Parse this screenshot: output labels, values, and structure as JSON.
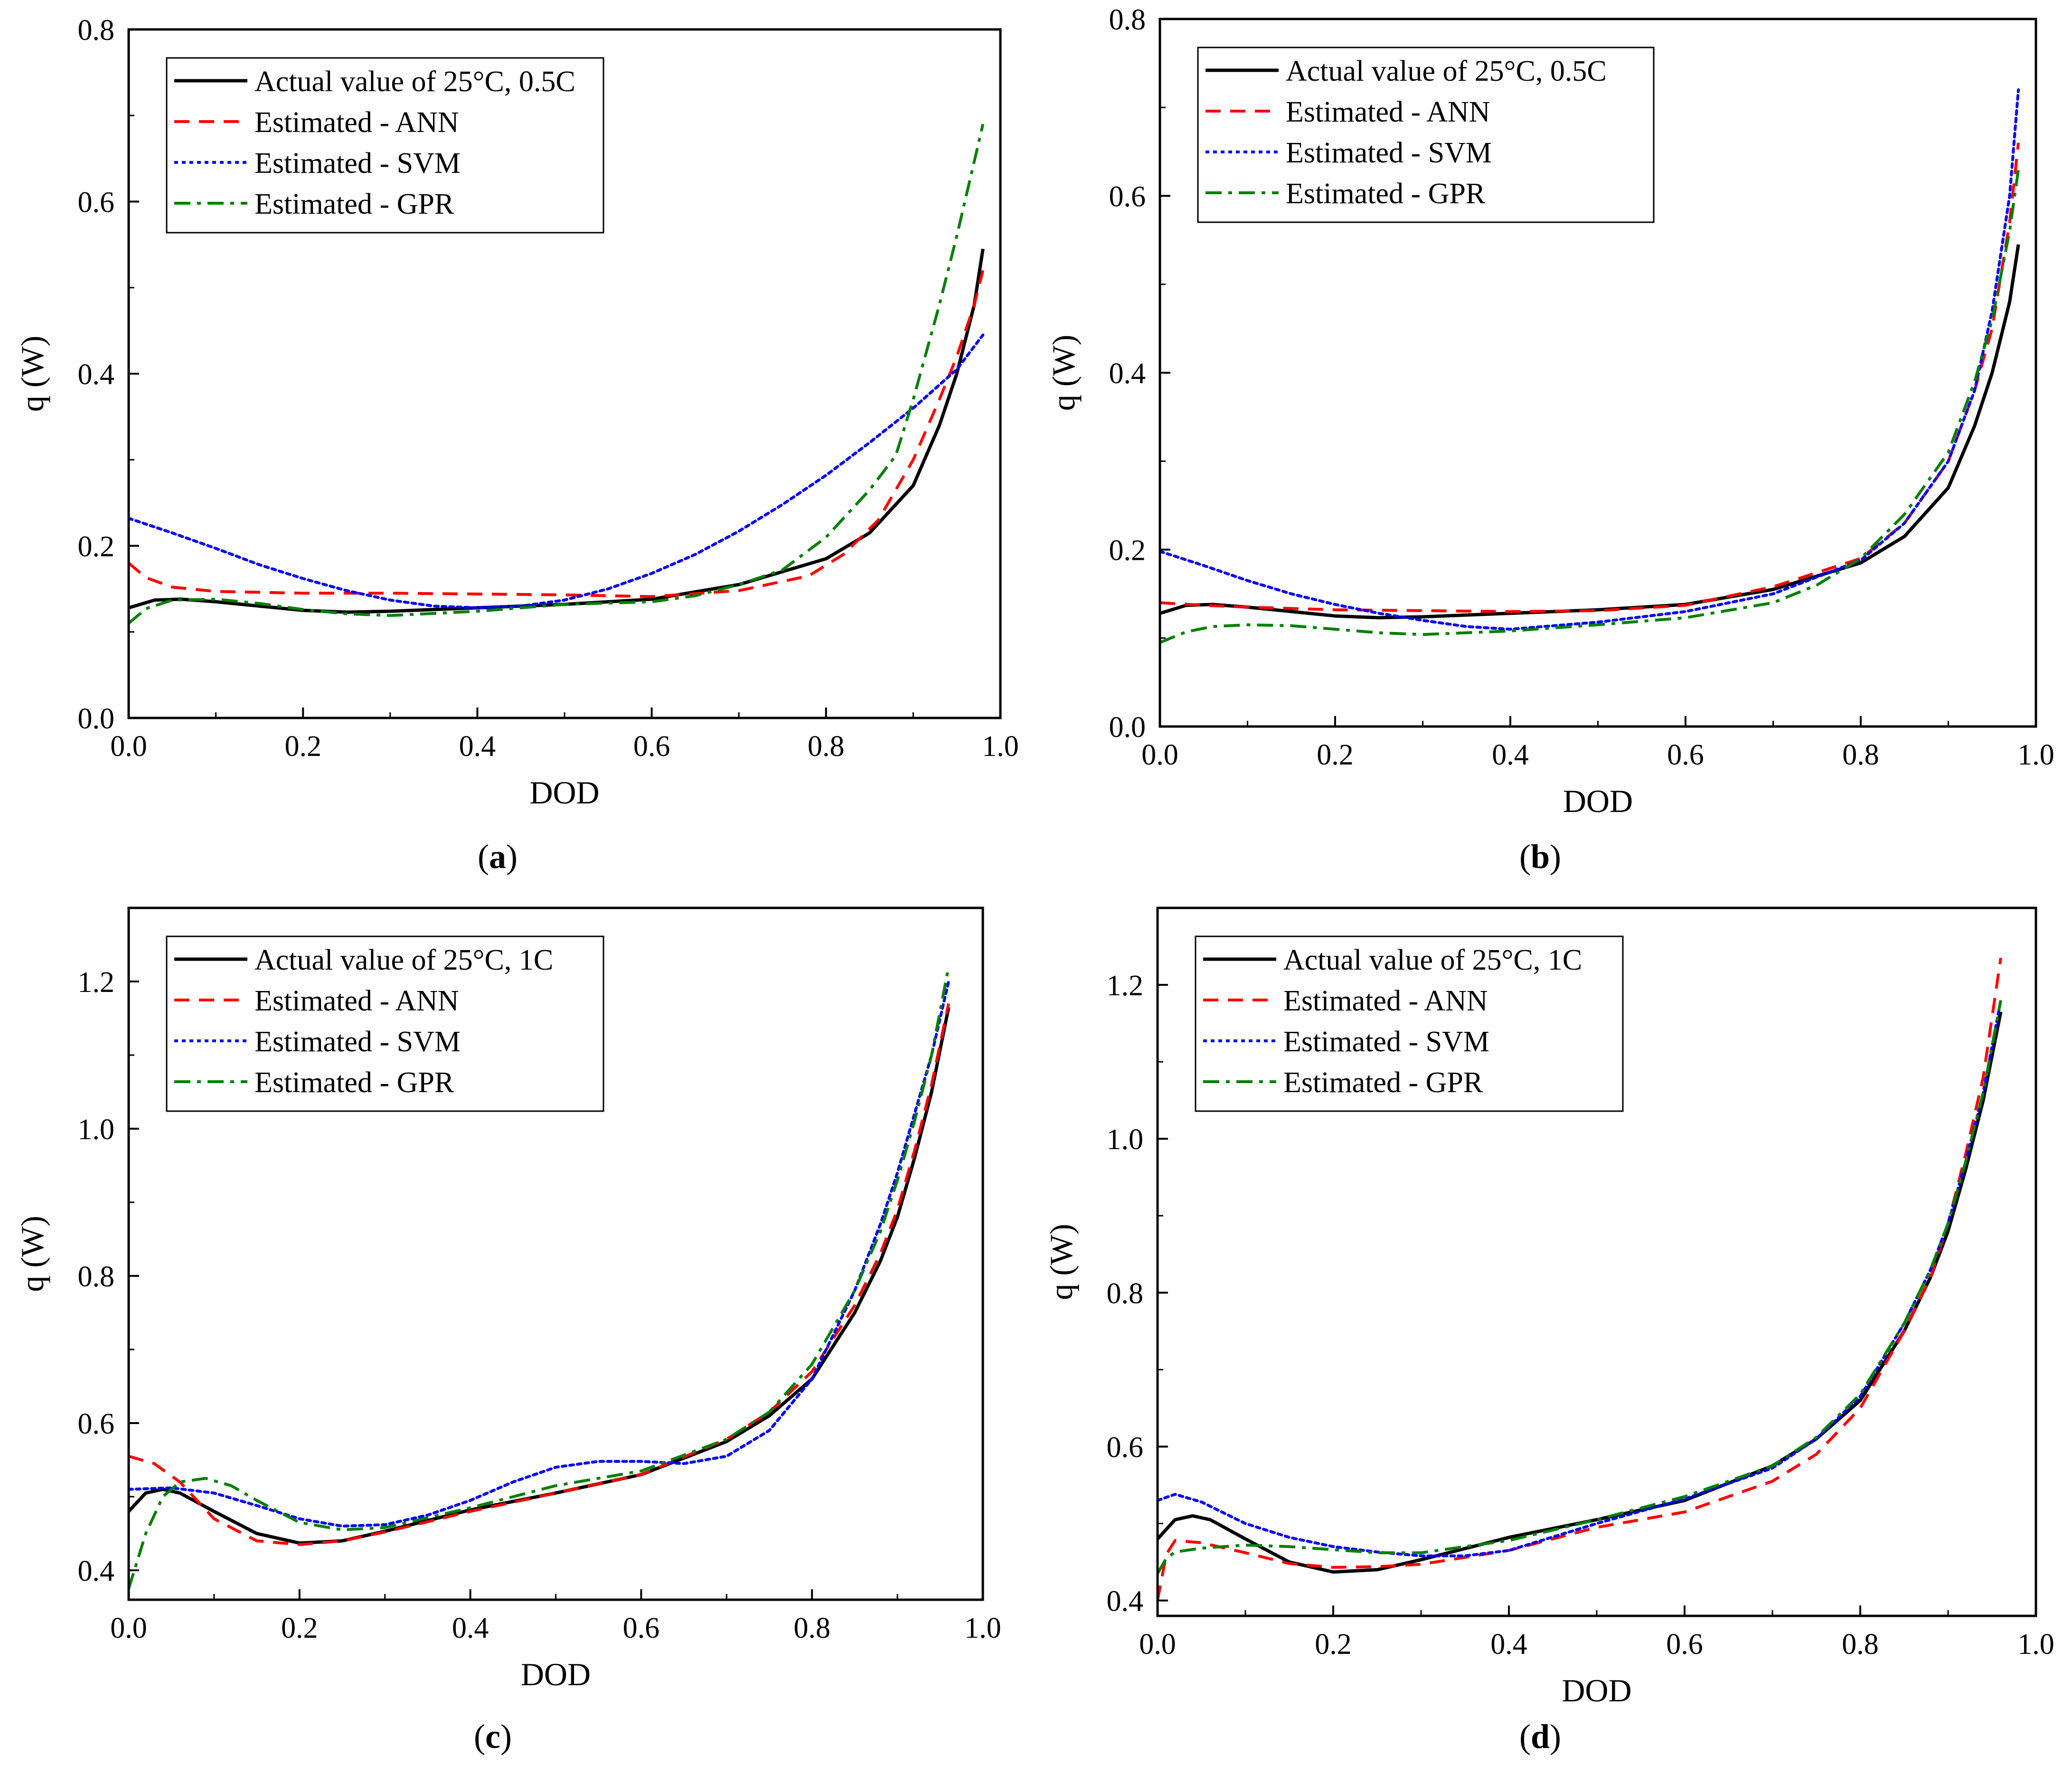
{
  "figure": {
    "series_colors": {
      "actual": "#000000",
      "ann": "#ff0000",
      "svm": "#0000ff",
      "gpr": "#008000"
    },
    "series_styles": {
      "actual": "solid",
      "ann": "dashed",
      "svm": "dotted",
      "gpr": "dash-dot"
    }
  },
  "chart_data": [
    {
      "id": "a",
      "type": "line",
      "caption": "a",
      "xlabel": "DOD",
      "ylabel": "q (W)",
      "xlim": [
        0,
        1.0
      ],
      "ylim": [
        0,
        0.8
      ],
      "xticks": [
        "0.0",
        "0.2",
        "0.4",
        "0.6",
        "0.8",
        "1.0"
      ],
      "yticks": [
        "0.0",
        "0.2",
        "0.4",
        "0.6",
        "0.8"
      ],
      "legend_position": "top-left",
      "series": [
        {
          "key": "actual",
          "name": "Actual value of 25°C, 0.5C",
          "x": [
            0.0,
            0.03,
            0.06,
            0.1,
            0.15,
            0.2,
            0.25,
            0.3,
            0.4,
            0.5,
            0.6,
            0.7,
            0.8,
            0.85,
            0.9,
            0.93,
            0.95,
            0.97,
            0.98
          ],
          "y": [
            0.128,
            0.137,
            0.138,
            0.135,
            0.13,
            0.125,
            0.123,
            0.124,
            0.128,
            0.132,
            0.138,
            0.155,
            0.185,
            0.215,
            0.27,
            0.34,
            0.4,
            0.48,
            0.545
          ]
        },
        {
          "key": "ann",
          "name": "Estimated - ANN",
          "x": [
            0.0,
            0.02,
            0.05,
            0.1,
            0.2,
            0.3,
            0.4,
            0.5,
            0.6,
            0.7,
            0.78,
            0.82,
            0.86,
            0.9,
            0.93,
            0.95,
            0.97,
            0.98
          ],
          "y": [
            0.18,
            0.163,
            0.152,
            0.147,
            0.145,
            0.145,
            0.144,
            0.143,
            0.141,
            0.148,
            0.165,
            0.19,
            0.23,
            0.3,
            0.37,
            0.42,
            0.48,
            0.52
          ]
        },
        {
          "key": "svm",
          "name": "Estimated - SVM",
          "x": [
            0.0,
            0.05,
            0.1,
            0.15,
            0.2,
            0.25,
            0.3,
            0.35,
            0.4,
            0.45,
            0.5,
            0.55,
            0.6,
            0.65,
            0.7,
            0.75,
            0.8,
            0.85,
            0.9,
            0.95,
            0.98
          ],
          "y": [
            0.232,
            0.215,
            0.197,
            0.178,
            0.162,
            0.148,
            0.137,
            0.13,
            0.128,
            0.13,
            0.137,
            0.15,
            0.168,
            0.19,
            0.217,
            0.248,
            0.282,
            0.32,
            0.36,
            0.405,
            0.445
          ]
        },
        {
          "key": "gpr",
          "name": "Estimated - GPR",
          "x": [
            0.0,
            0.02,
            0.05,
            0.1,
            0.15,
            0.2,
            0.25,
            0.3,
            0.4,
            0.5,
            0.6,
            0.65,
            0.7,
            0.75,
            0.8,
            0.85,
            0.88,
            0.9,
            0.93,
            0.95,
            0.98
          ],
          "y": [
            0.11,
            0.127,
            0.137,
            0.138,
            0.133,
            0.126,
            0.121,
            0.119,
            0.124,
            0.132,
            0.135,
            0.142,
            0.155,
            0.172,
            0.21,
            0.265,
            0.305,
            0.37,
            0.48,
            0.56,
            0.69
          ]
        }
      ]
    },
    {
      "id": "b",
      "type": "line",
      "caption": "b",
      "xlabel": "DOD",
      "ylabel": "q (W)",
      "xlim": [
        0,
        1.0
      ],
      "ylim": [
        0,
        0.8
      ],
      "xticks": [
        "0.0",
        "0.2",
        "0.4",
        "0.6",
        "0.8",
        "1.0"
      ],
      "yticks": [
        "0.0",
        "0.2",
        "0.4",
        "0.6",
        "0.8"
      ],
      "legend_position": "top-left",
      "series": [
        {
          "key": "actual",
          "name": "Actual value of 25°C, 0.5C",
          "x": [
            0.0,
            0.03,
            0.06,
            0.1,
            0.15,
            0.2,
            0.25,
            0.3,
            0.4,
            0.5,
            0.6,
            0.7,
            0.8,
            0.85,
            0.9,
            0.93,
            0.95,
            0.97,
            0.98
          ],
          "y": [
            0.128,
            0.137,
            0.138,
            0.135,
            0.13,
            0.125,
            0.123,
            0.124,
            0.128,
            0.132,
            0.138,
            0.155,
            0.185,
            0.215,
            0.27,
            0.34,
            0.4,
            0.48,
            0.545
          ]
        },
        {
          "key": "ann",
          "name": "Estimated - ANN",
          "x": [
            0.0,
            0.05,
            0.1,
            0.2,
            0.3,
            0.4,
            0.5,
            0.6,
            0.7,
            0.8,
            0.85,
            0.9,
            0.93,
            0.95,
            0.97,
            0.98
          ],
          "y": [
            0.14,
            0.137,
            0.135,
            0.132,
            0.131,
            0.13,
            0.131,
            0.137,
            0.158,
            0.19,
            0.23,
            0.3,
            0.38,
            0.45,
            0.57,
            0.66
          ]
        },
        {
          "key": "svm",
          "name": "Estimated - SVM",
          "x": [
            0.0,
            0.05,
            0.1,
            0.15,
            0.2,
            0.25,
            0.3,
            0.35,
            0.4,
            0.5,
            0.6,
            0.7,
            0.8,
            0.85,
            0.9,
            0.93,
            0.95,
            0.97,
            0.98
          ],
          "y": [
            0.198,
            0.182,
            0.165,
            0.15,
            0.138,
            0.128,
            0.12,
            0.113,
            0.11,
            0.118,
            0.13,
            0.15,
            0.188,
            0.23,
            0.3,
            0.38,
            0.47,
            0.6,
            0.72
          ]
        },
        {
          "key": "gpr",
          "name": "Estimated - GPR",
          "x": [
            0.0,
            0.03,
            0.06,
            0.1,
            0.15,
            0.2,
            0.25,
            0.3,
            0.4,
            0.5,
            0.6,
            0.7,
            0.75,
            0.8,
            0.85,
            0.9,
            0.93,
            0.95,
            0.97,
            0.98
          ],
          "y": [
            0.095,
            0.107,
            0.113,
            0.115,
            0.114,
            0.11,
            0.106,
            0.104,
            0.108,
            0.115,
            0.123,
            0.14,
            0.16,
            0.19,
            0.24,
            0.31,
            0.39,
            0.46,
            0.56,
            0.63
          ]
        }
      ]
    },
    {
      "id": "c",
      "type": "line",
      "caption": "c",
      "xlabel": "DOD",
      "ylabel": "q (W)",
      "xlim": [
        0,
        1.0
      ],
      "ylim": [
        0.36,
        1.3
      ],
      "xticks": [
        "0.0",
        "0.2",
        "0.4",
        "0.6",
        "0.8",
        "1.0"
      ],
      "yticks": [
        "0.4",
        "0.6",
        "0.8",
        "1.0",
        "1.2"
      ],
      "legend_position": "top-left",
      "series": [
        {
          "key": "actual",
          "name": "Actual value of 25°C, 1C",
          "x": [
            0.0,
            0.02,
            0.04,
            0.06,
            0.1,
            0.15,
            0.2,
            0.25,
            0.3,
            0.4,
            0.5,
            0.6,
            0.7,
            0.75,
            0.8,
            0.85,
            0.88,
            0.9,
            0.92,
            0.94,
            0.96
          ],
          "y": [
            0.48,
            0.505,
            0.51,
            0.505,
            0.48,
            0.45,
            0.437,
            0.44,
            0.453,
            0.482,
            0.505,
            0.53,
            0.575,
            0.61,
            0.66,
            0.75,
            0.82,
            0.88,
            0.96,
            1.05,
            1.165
          ]
        },
        {
          "key": "ann",
          "name": "Estimated - ANN",
          "x": [
            0.0,
            0.03,
            0.06,
            0.1,
            0.15,
            0.2,
            0.25,
            0.3,
            0.4,
            0.5,
            0.6,
            0.7,
            0.75,
            0.8,
            0.85,
            0.88,
            0.9,
            0.92,
            0.94,
            0.96
          ],
          "y": [
            0.555,
            0.545,
            0.52,
            0.47,
            0.44,
            0.435,
            0.44,
            0.452,
            0.48,
            0.505,
            0.53,
            0.578,
            0.615,
            0.67,
            0.76,
            0.83,
            0.89,
            0.97,
            1.06,
            1.17
          ]
        },
        {
          "key": "svm",
          "name": "Estimated - SVM",
          "x": [
            0.0,
            0.05,
            0.1,
            0.15,
            0.2,
            0.25,
            0.3,
            0.35,
            0.4,
            0.45,
            0.5,
            0.55,
            0.6,
            0.65,
            0.7,
            0.75,
            0.8,
            0.85,
            0.88,
            0.9,
            0.92,
            0.94,
            0.96
          ],
          "y": [
            0.51,
            0.512,
            0.505,
            0.488,
            0.47,
            0.46,
            0.462,
            0.475,
            0.495,
            0.52,
            0.54,
            0.548,
            0.548,
            0.545,
            0.555,
            0.59,
            0.66,
            0.78,
            0.87,
            0.94,
            1.02,
            1.1,
            1.2
          ]
        },
        {
          "key": "gpr",
          "name": "Estimated - GPR",
          "x": [
            0.0,
            0.02,
            0.04,
            0.06,
            0.09,
            0.12,
            0.15,
            0.2,
            0.25,
            0.3,
            0.4,
            0.5,
            0.6,
            0.7,
            0.75,
            0.8,
            0.85,
            0.88,
            0.9,
            0.92,
            0.94,
            0.96
          ],
          "y": [
            0.375,
            0.45,
            0.5,
            0.52,
            0.525,
            0.515,
            0.495,
            0.465,
            0.455,
            0.458,
            0.485,
            0.515,
            0.535,
            0.578,
            0.615,
            0.68,
            0.78,
            0.86,
            0.93,
            1.01,
            1.1,
            1.22
          ]
        }
      ]
    },
    {
      "id": "d",
      "type": "line",
      "caption": "d",
      "xlabel": "DOD",
      "ylabel": "q (W)",
      "xlim": [
        0,
        1.0
      ],
      "ylim": [
        0.38,
        1.3
      ],
      "xticks": [
        "0.0",
        "0.2",
        "0.4",
        "0.6",
        "0.8",
        "1.0"
      ],
      "yticks": [
        "0.4",
        "0.6",
        "0.8",
        "1.0",
        "1.2"
      ],
      "legend_position": "top-left",
      "series": [
        {
          "key": "actual",
          "name": "Actual value of 25°C, 1C",
          "x": [
            0.0,
            0.02,
            0.04,
            0.06,
            0.1,
            0.15,
            0.2,
            0.25,
            0.3,
            0.4,
            0.5,
            0.6,
            0.7,
            0.75,
            0.8,
            0.85,
            0.88,
            0.9,
            0.92,
            0.94,
            0.96
          ],
          "y": [
            0.48,
            0.505,
            0.51,
            0.505,
            0.48,
            0.45,
            0.437,
            0.44,
            0.453,
            0.482,
            0.505,
            0.53,
            0.575,
            0.61,
            0.66,
            0.75,
            0.82,
            0.88,
            0.96,
            1.05,
            1.165
          ]
        },
        {
          "key": "ann",
          "name": "Estimated - ANN",
          "x": [
            0.0,
            0.01,
            0.02,
            0.05,
            0.1,
            0.15,
            0.2,
            0.25,
            0.3,
            0.4,
            0.5,
            0.6,
            0.7,
            0.75,
            0.8,
            0.85,
            0.88,
            0.9,
            0.92,
            0.94,
            0.96
          ],
          "y": [
            0.4,
            0.46,
            0.478,
            0.475,
            0.462,
            0.448,
            0.443,
            0.444,
            0.447,
            0.465,
            0.495,
            0.515,
            0.555,
            0.59,
            0.65,
            0.75,
            0.82,
            0.89,
            0.98,
            1.08,
            1.235
          ]
        },
        {
          "key": "svm",
          "name": "Estimated - SVM",
          "x": [
            0.0,
            0.02,
            0.05,
            0.1,
            0.15,
            0.2,
            0.25,
            0.3,
            0.35,
            0.4,
            0.5,
            0.6,
            0.7,
            0.75,
            0.8,
            0.85,
            0.88,
            0.9,
            0.92,
            0.94,
            0.96
          ],
          "y": [
            0.53,
            0.538,
            0.528,
            0.5,
            0.482,
            0.47,
            0.463,
            0.458,
            0.458,
            0.465,
            0.5,
            0.532,
            0.572,
            0.61,
            0.665,
            0.76,
            0.83,
            0.89,
            0.97,
            1.06,
            1.18
          ]
        },
        {
          "key": "gpr",
          "name": "Estimated - GPR",
          "x": [
            0.0,
            0.01,
            0.02,
            0.05,
            0.1,
            0.15,
            0.2,
            0.25,
            0.3,
            0.4,
            0.5,
            0.6,
            0.7,
            0.75,
            0.8,
            0.85,
            0.88,
            0.9,
            0.92,
            0.94,
            0.96
          ],
          "y": [
            0.435,
            0.455,
            0.463,
            0.468,
            0.472,
            0.47,
            0.466,
            0.462,
            0.462,
            0.478,
            0.505,
            0.535,
            0.575,
            0.612,
            0.668,
            0.76,
            0.83,
            0.89,
            0.97,
            1.06,
            1.18
          ]
        }
      ]
    }
  ]
}
